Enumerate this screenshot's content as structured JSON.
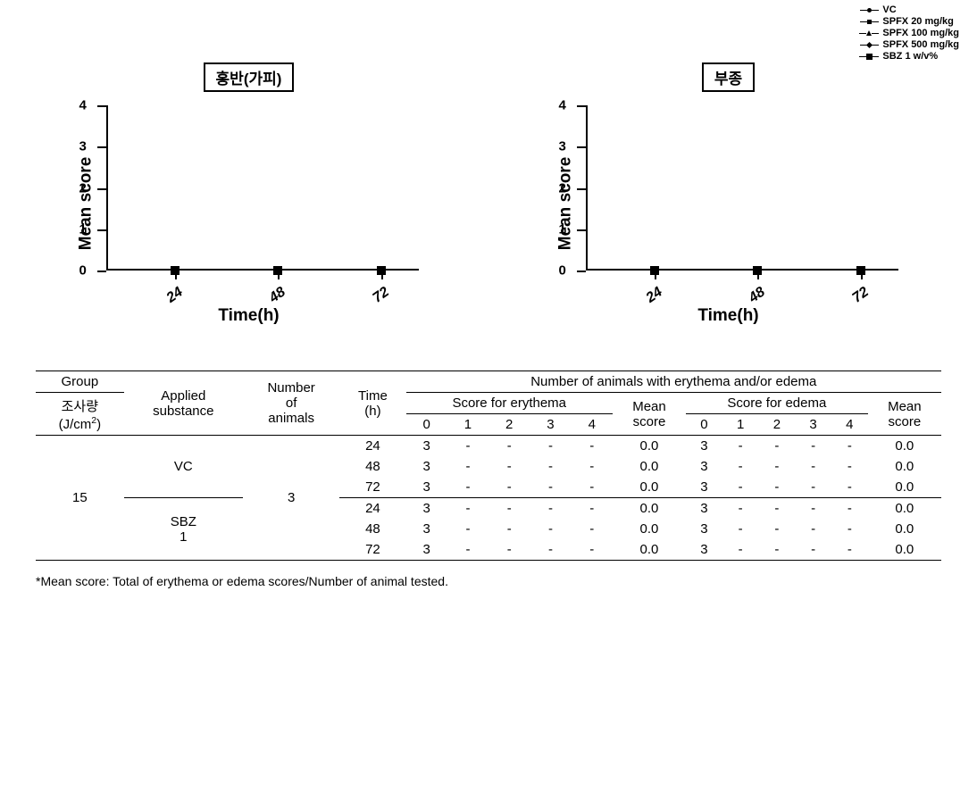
{
  "legend": {
    "items": [
      {
        "label": "VC",
        "marker": "circle"
      },
      {
        "label": "SPFX 20 mg/kg",
        "marker": "square"
      },
      {
        "label": "SPFX 100 mg/kg",
        "marker": "triangle"
      },
      {
        "label": "SPFX 500 mg/kg",
        "marker": "diamond"
      },
      {
        "label": "SBZ 1 w/v%",
        "marker": "bigsquare"
      }
    ]
  },
  "charts": [
    {
      "title": "홍반(가피)",
      "ylabel": "Mean score",
      "xlabel": "Time(h)",
      "ylim": [
        0,
        4
      ],
      "ytick_step": 1,
      "xticks": [
        "24",
        "48",
        "72"
      ],
      "xtick_positions_pct": [
        22,
        55,
        88
      ],
      "series_color": "#000000",
      "background_color": "#ffffff",
      "values": [
        0,
        0,
        0
      ]
    },
    {
      "title": "부종",
      "ylabel": "Mean score",
      "xlabel": "Time(h)",
      "ylim": [
        0,
        4
      ],
      "ytick_step": 1,
      "xticks": [
        "24",
        "48",
        "72"
      ],
      "xtick_positions_pct": [
        22,
        55,
        88
      ],
      "series_color": "#000000",
      "background_color": "#ffffff",
      "values": [
        0,
        0,
        0
      ]
    }
  ],
  "table": {
    "headers": {
      "group": "Group",
      "group_sub_label": "조사량",
      "group_sub_unit": "(J/cm²)",
      "applied": "Applied substance",
      "number": "Number of animals",
      "time": "Time (h)",
      "top_span": "Number of animals with erythema and/or edema",
      "score_ery": "Score for erythema",
      "score_ede": "Score for edema",
      "mean": "Mean score",
      "score_levels": [
        "0",
        "1",
        "2",
        "3",
        "4"
      ]
    },
    "group_value": "15",
    "number_value": "3",
    "substances": [
      {
        "name": "VC",
        "sub": "",
        "rows": [
          {
            "time": "24",
            "ery": [
              "3",
              "-",
              "-",
              "-",
              "-"
            ],
            "ery_mean": "0.0",
            "ede": [
              "3",
              "-",
              "-",
              "-",
              "-"
            ],
            "ede_mean": "0.0"
          },
          {
            "time": "48",
            "ery": [
              "3",
              "-",
              "-",
              "-",
              "-"
            ],
            "ery_mean": "0.0",
            "ede": [
              "3",
              "-",
              "-",
              "-",
              "-"
            ],
            "ede_mean": "0.0"
          },
          {
            "time": "72",
            "ery": [
              "3",
              "-",
              "-",
              "-",
              "-"
            ],
            "ery_mean": "0.0",
            "ede": [
              "3",
              "-",
              "-",
              "-",
              "-"
            ],
            "ede_mean": "0.0"
          }
        ]
      },
      {
        "name": "SBZ",
        "sub": "1",
        "rows": [
          {
            "time": "24",
            "ery": [
              "3",
              "-",
              "-",
              "-",
              "-"
            ],
            "ery_mean": "0.0",
            "ede": [
              "3",
              "-",
              "-",
              "-",
              "-"
            ],
            "ede_mean": "0.0"
          },
          {
            "time": "48",
            "ery": [
              "3",
              "-",
              "-",
              "-",
              "-"
            ],
            "ery_mean": "0.0",
            "ede": [
              "3",
              "-",
              "-",
              "-",
              "-"
            ],
            "ede_mean": "0.0"
          },
          {
            "time": "72",
            "ery": [
              "3",
              "-",
              "-",
              "-",
              "-"
            ],
            "ery_mean": "0.0",
            "ede": [
              "3",
              "-",
              "-",
              "-",
              "-"
            ],
            "ede_mean": "0.0"
          }
        ]
      }
    ]
  },
  "footnote": "*Mean score: Total of erythema or edema scores/Number of animal tested."
}
